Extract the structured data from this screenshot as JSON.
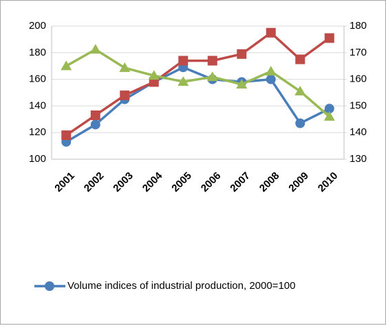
{
  "chart_data": {
    "type": "line",
    "categories": [
      "2001",
      "2002",
      "2003",
      "2004",
      "2005",
      "2006",
      "2007",
      "2008",
      "2009",
      "2010"
    ],
    "series": [
      {
        "name": "Volume indices of industrial production, 2000=100",
        "color": "#4a7ebb",
        "marker": "circle",
        "values": [
          113,
          126,
          145,
          158,
          169,
          160,
          158,
          160,
          127,
          138
        ]
      },
      {
        "color": "#be4b48",
        "marker": "square",
        "values": [
          118,
          133,
          148,
          158,
          174,
          174,
          179,
          195,
          175,
          191
        ]
      },
      {
        "color": "#98b954",
        "marker": "triangle",
        "axis": "y2",
        "values": [
          165,
          171.2,
          164.3,
          161.4,
          159.1,
          160.9,
          158.1,
          163,
          155.5,
          146
        ]
      }
    ],
    "ylim": [
      100,
      200
    ],
    "yticks": [
      100,
      120,
      140,
      160,
      180,
      200
    ],
    "y2lim": [
      130,
      180
    ],
    "y2ticks": [
      130,
      140,
      150,
      160,
      170,
      180
    ],
    "grid": true,
    "legend": "bottom"
  }
}
